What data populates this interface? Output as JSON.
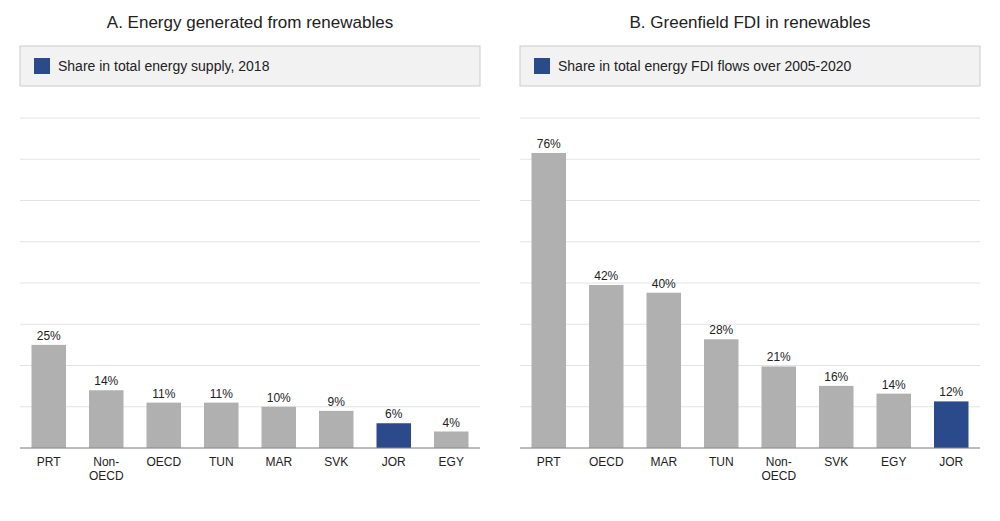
{
  "chart_data": [
    {
      "type": "bar",
      "title": "A. Energy generated from renewables",
      "categories": [
        "PRT",
        "Non-\nOECD",
        "OECD",
        "TUN",
        "MAR",
        "SVK",
        "JOR",
        "EGY"
      ],
      "series": [
        {
          "name": "Share in total energy supply, 2018",
          "color": "#2b4a8c",
          "colors": [
            "#b0b0b0",
            "#b0b0b0",
            "#b0b0b0",
            "#b0b0b0",
            "#b0b0b0",
            "#b0b0b0",
            "#2b4a8c",
            "#b0b0b0"
          ],
          "values": [
            25,
            14,
            11,
            11,
            10,
            9,
            6,
            4
          ],
          "value_labels": [
            "25%",
            "14%",
            "11%",
            "11%",
            "10%",
            "9%",
            "6%",
            "4%"
          ]
        }
      ],
      "ylim": [
        0,
        80
      ],
      "yticks": [
        0,
        10,
        20,
        30,
        40,
        50,
        60,
        70,
        80
      ],
      "grid": true,
      "legend": "top",
      "data_labels": true,
      "tick_labels": "x"
    },
    {
      "type": "bar",
      "title": "B. Greenfield FDI in renewables",
      "categories": [
        "PRT",
        "OECD",
        "MAR",
        "TUN",
        "Non-\nOECD",
        "SVK",
        "EGY",
        "JOR"
      ],
      "series": [
        {
          "name": "Share in total energy FDI flows over 2005-2020",
          "color": "#2b4a8c",
          "colors": [
            "#b0b0b0",
            "#b0b0b0",
            "#b0b0b0",
            "#b0b0b0",
            "#b0b0b0",
            "#b0b0b0",
            "#b0b0b0",
            "#2b4a8c"
          ],
          "values": [
            76,
            42,
            40,
            28,
            21,
            16,
            14,
            12
          ],
          "value_labels": [
            "76%",
            "42%",
            "40%",
            "28%",
            "21%",
            "16%",
            "14%",
            "12%"
          ]
        }
      ],
      "ylim": [
        0,
        85
      ],
      "yticks": [
        0,
        10.625,
        21.25,
        31.875,
        42.5,
        53.125,
        63.75,
        74.375,
        85
      ],
      "grid": true,
      "legend": "top",
      "data_labels": true,
      "tick_labels": "x"
    }
  ]
}
